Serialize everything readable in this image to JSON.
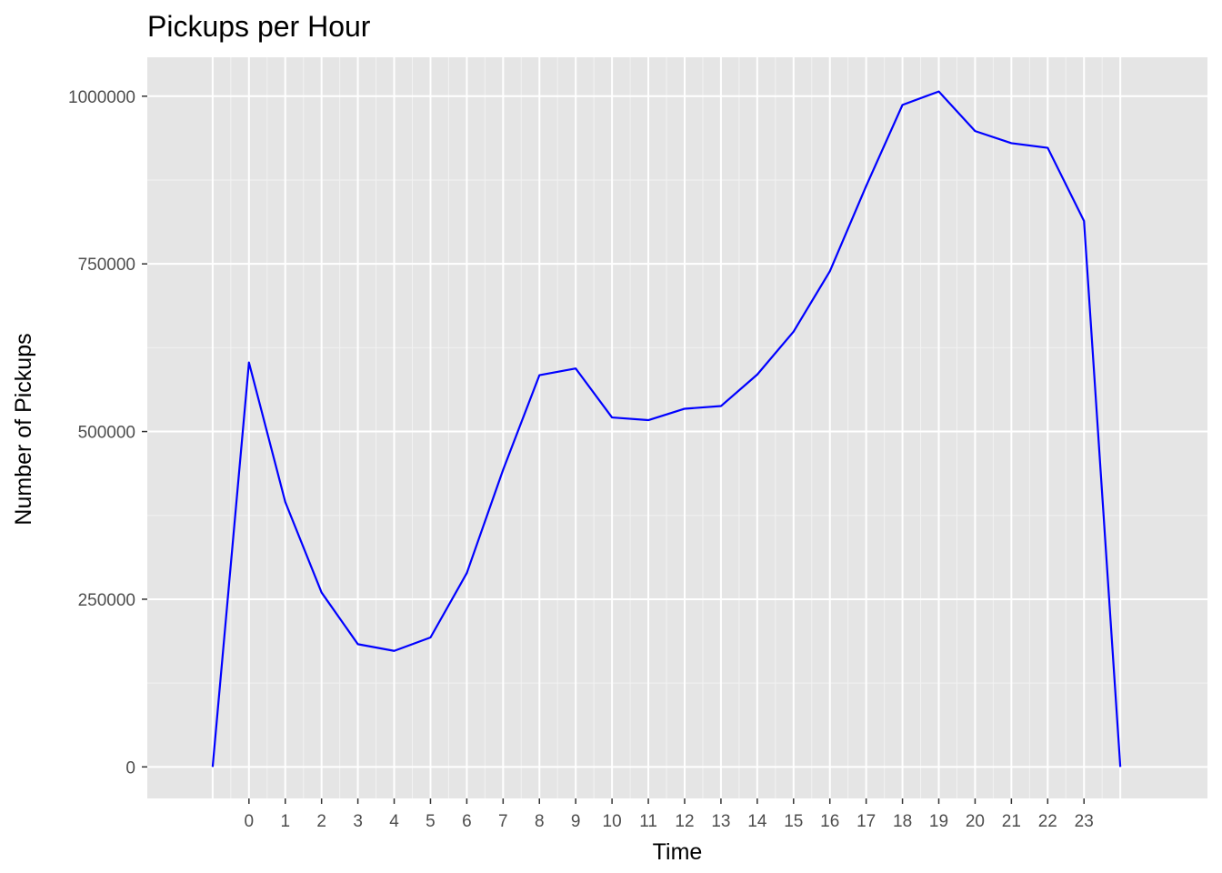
{
  "chart_data": {
    "type": "line",
    "title": "Pickups per Hour",
    "xlabel": "Time",
    "ylabel": "Number of Pickups",
    "x_ticks": [
      "0",
      "1",
      "2",
      "3",
      "4",
      "5",
      "6",
      "7",
      "8",
      "9",
      "10",
      "11",
      "12",
      "13",
      "14",
      "15",
      "16",
      "17",
      "18",
      "19",
      "20",
      "21",
      "22",
      "23"
    ],
    "y_ticks": [
      0,
      250000,
      500000,
      750000,
      1000000
    ],
    "y_tick_labels": [
      "0",
      "250000",
      "500000",
      "750000",
      "1000000"
    ],
    "ylim": [
      -47000,
      1058000
    ],
    "xlim": [
      -2.8,
      26.4
    ],
    "grid": true,
    "legend": "none",
    "series": [
      {
        "color": "#0000ff",
        "x": [
          -1,
          0,
          1,
          2,
          3,
          4,
          5,
          6,
          7,
          8,
          9,
          10,
          11,
          12,
          13,
          14,
          15,
          16,
          17,
          18,
          19,
          20,
          21,
          22,
          23,
          24
        ],
        "values": [
          0,
          603000,
          395000,
          260000,
          183000,
          173000,
          193000,
          289000,
          443000,
          584000,
          594000,
          521000,
          517000,
          534000,
          538000,
          585000,
          649000,
          739000,
          866000,
          987000,
          1007000,
          948000,
          930000,
          923000,
          814000,
          0
        ]
      }
    ]
  },
  "colors": {
    "panel_background": "#e5e5e5",
    "grid_major": "#ffffff",
    "grid_minor": "#f2f2f2",
    "line": "#0000ff",
    "tick_text": "#4d4d4d",
    "tick_mark": "#333333"
  }
}
